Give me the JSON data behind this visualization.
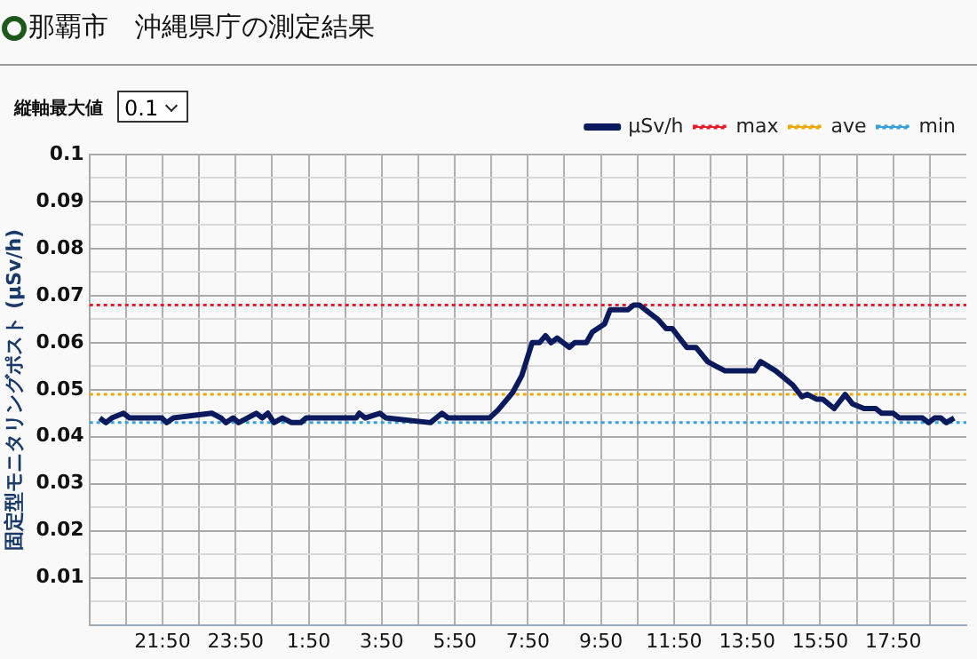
{
  "chart_data": {
    "type": "line",
    "title": "那覇市　沖縄県庁の測定結果",
    "ylabel": "固定型モニタリングポスト (μSv/h)",
    "annotations": [
      "縦軸最大値",
      "0.1"
    ],
    "legend": "top right",
    "grid": true,
    "marker": "none",
    "line_style": "solid",
    "xlim": [
      "--01-01T19:50",
      "--01-02T19:50"
    ],
    "xticks": [
      {
        "value": "--01-01T20:50",
        "label": null
      },
      {
        "value": "--01-01T21:50",
        "label": "21:50"
      },
      {
        "value": "--01-01T22:50",
        "label": null
      },
      {
        "value": "--01-01T23:50",
        "label": "23:50"
      },
      {
        "value": "--01-02T00:50",
        "label": null
      },
      {
        "value": "--01-02T01:50",
        "label": "1:50"
      },
      {
        "value": "--01-02T02:50",
        "label": null
      },
      {
        "value": "--01-02T03:50",
        "label": "3:50"
      },
      {
        "value": "--01-02T04:50",
        "label": null
      },
      {
        "value": "--01-02T05:50",
        "label": "5:50"
      },
      {
        "value": "--01-02T06:50",
        "label": null
      },
      {
        "value": "--01-02T07:50",
        "label": "7:50"
      },
      {
        "value": "--01-02T08:50",
        "label": null
      },
      {
        "value": "--01-02T09:50",
        "label": "9:50"
      },
      {
        "value": "--01-02T10:50",
        "label": null
      },
      {
        "value": "--01-02T11:50",
        "label": "11:50"
      },
      {
        "value": "--01-02T12:50",
        "label": null
      },
      {
        "value": "--01-02T13:50",
        "label": "13:50"
      },
      {
        "value": "--01-02T14:50",
        "label": null
      },
      {
        "value": "--01-02T15:50",
        "label": "15:50"
      },
      {
        "value": "--01-02T16:50",
        "label": null
      },
      {
        "value": "--01-02T17:50",
        "label": "17:50"
      },
      {
        "value": "--01-02T18:50",
        "label": null
      }
    ],
    "ylim": [
      0,
      0.1
    ],
    "yticks": [
      {
        "value": 0.005,
        "label": null
      },
      0.01,
      {
        "value": 0.015,
        "label": null
      },
      0.02,
      {
        "value": 0.025,
        "label": null
      },
      0.03,
      {
        "value": 0.035,
        "label": null
      },
      0.04,
      {
        "value": 0.045,
        "label": null
      },
      0.05,
      {
        "value": 0.055,
        "label": null
      },
      0.06,
      {
        "value": 0.065,
        "label": null
      },
      0.07,
      {
        "value": 0.075,
        "label": null
      },
      0.08,
      {
        "value": 0.085,
        "label": null
      },
      0.09,
      {
        "value": 0.095,
        "label": null
      },
      0.1
    ],
    "ref_lines": [
      {
        "axis": "y",
        "value": 0.068,
        "label": "max",
        "color": "#e0202a",
        "line_style": "dotted"
      },
      {
        "axis": "y",
        "value": 0.049,
        "label": "ave",
        "color": "#f0a800",
        "line_style": "dotted"
      },
      {
        "axis": "y",
        "value": 0.043,
        "label": "min",
        "color": "#3aa0d8",
        "line_style": "dotted"
      }
    ],
    "series": [
      {
        "name": "μSv/h",
        "color": "#0a1a5c",
        "x": [
          "--01-01T20:07",
          "--01-01T20:17",
          "--01-01T20:27",
          "--01-01T20:46",
          "--01-01T20:56",
          "--01-01T21:49",
          "--01-01T21:57",
          "--01-01T22:08",
          "--01-01T23:11",
          "--01-01T23:26",
          "--01-01T23:34",
          "--01-01T23:46",
          "--01-01T23:55",
          "--01-02T00:24",
          "--01-02T00:34",
          "--01-02T00:43",
          "--01-02T00:53",
          "--01-02T01:07",
          "--01-02T01:22",
          "--01-02T01:37",
          "--01-02T01:46",
          "--01-02T03:08",
          "--01-02T03:13",
          "--01-02T03:23",
          "--01-02T03:47",
          "--01-02T03:57",
          "--01-02T05:10",
          "--01-02T05:29",
          "--01-02T05:39",
          "--01-02T06:47",
          "--01-02T07:01",
          "--01-02T07:25",
          "--01-02T07:40",
          "--01-02T07:57",
          "--01-02T08:09",
          "--01-02T08:19",
          "--01-02T08:28",
          "--01-02T08:38",
          "--01-02T08:58",
          "--01-02T09:07",
          "--01-02T09:26",
          "--01-02T09:36",
          "--01-02T09:56",
          "--01-02T10:05",
          "--01-02T10:34",
          "--01-02T10:44",
          "--01-02T10:53",
          "--01-02T11:03",
          "--01-02T11:23",
          "--01-02T11:37",
          "--01-02T11:47",
          "--01-02T12:11",
          "--01-02T12:26",
          "--01-02T12:45",
          "--01-02T12:59",
          "--01-02T13:14",
          "--01-02T14:02",
          "--01-02T14:12",
          "--01-02T14:37",
          "--01-02T15:05",
          "--01-02T15:20",
          "--01-02T15:29",
          "--01-02T15:44",
          "--01-02T15:54",
          "--01-02T16:13",
          "--01-02T16:31",
          "--01-02T16:43",
          "--01-02T17:02",
          "--01-02T17:21",
          "--01-02T17:31",
          "--01-02T17:50",
          "--01-02T18:00",
          "--01-02T18:38",
          "--01-02T18:48",
          "--01-02T18:58",
          "--01-02T19:08",
          "--01-02T19:17",
          "--01-02T19:30"
        ],
        "values": [
          0.044,
          0.043,
          0.044,
          0.045,
          0.044,
          0.044,
          0.043,
          0.044,
          0.045,
          0.044,
          0.043,
          0.044,
          0.043,
          0.045,
          0.044,
          0.045,
          0.043,
          0.044,
          0.043,
          0.043,
          0.044,
          0.044,
          0.045,
          0.044,
          0.045,
          0.044,
          0.043,
          0.045,
          0.044,
          0.044,
          0.0457,
          0.0494,
          0.053,
          0.06,
          0.06,
          0.0615,
          0.06,
          0.061,
          0.059,
          0.06,
          0.06,
          0.0623,
          0.064,
          0.067,
          0.067,
          0.068,
          0.068,
          0.067,
          0.065,
          0.063,
          0.063,
          0.059,
          0.059,
          0.056,
          0.055,
          0.054,
          0.054,
          0.056,
          0.054,
          0.051,
          0.0485,
          0.049,
          0.048,
          0.048,
          0.046,
          0.049,
          0.047,
          0.046,
          0.046,
          0.045,
          0.045,
          0.044,
          0.044,
          0.043,
          0.044,
          0.044,
          0.043,
          0.044
        ]
      }
    ]
  }
}
